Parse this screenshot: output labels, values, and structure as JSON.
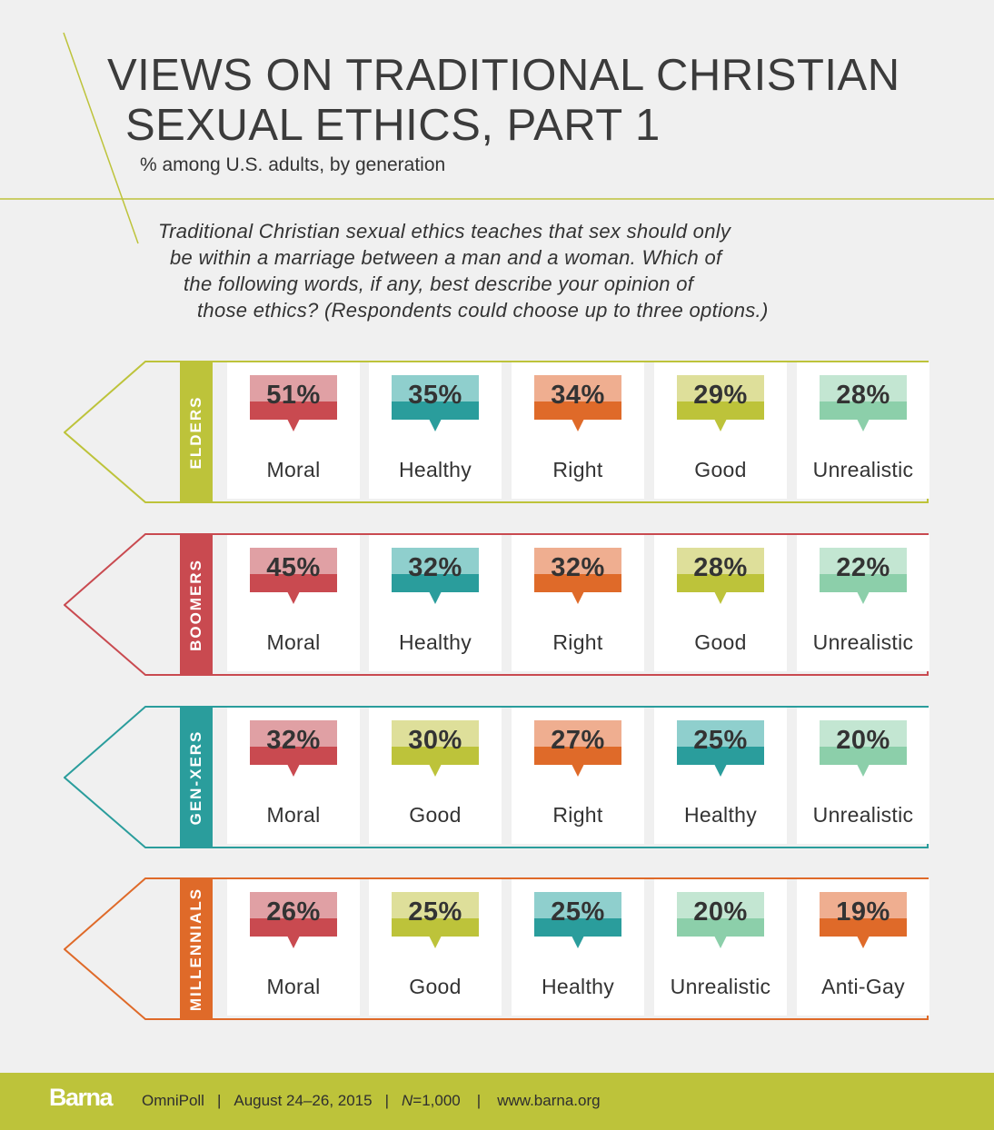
{
  "title_line1": "VIEWS ON TRADITIONAL CHRISTIAN",
  "title_line2": "SEXUAL ETHICS, PART 1",
  "subtitle": "% among U.S. adults, by generation",
  "question": [
    "Traditional Christian sexual ethics teaches that sex should only",
    "be within a marriage between a man and a woman. Which of",
    "the following words, if any, best describe your opinion of",
    "those ethics? (Respondents could choose up to three options.)"
  ],
  "colors": {
    "background": "#f0f0f0",
    "lime": "#bdc33a",
    "red": "#c94a50",
    "teal": "#2a9d9c",
    "orange": "#df6a29",
    "mint": "#8ccfaa"
  },
  "word_colors": {
    "Moral": {
      "dark": "#c94a50",
      "light": "#e0a0a4"
    },
    "Healthy": {
      "dark": "#2a9d9c",
      "light": "#8fcfcd"
    },
    "Right": {
      "dark": "#df6a29",
      "light": "#efae90"
    },
    "Good": {
      "dark": "#bdc33a",
      "light": "#dedf9a"
    },
    "Unrealistic": {
      "dark": "#8ccfaa",
      "light": "#c3e6d2"
    },
    "Anti-Gay": {
      "dark": "#df6a29",
      "light": "#efae90"
    }
  },
  "chart_data": {
    "type": "table",
    "unit": "%",
    "groups": [
      {
        "name": "ELDERS",
        "color": "#bdc33a",
        "items": [
          {
            "label": "Moral",
            "value": 51,
            "display": "51%"
          },
          {
            "label": "Healthy",
            "value": 35,
            "display": "35%"
          },
          {
            "label": "Right",
            "value": 34,
            "display": "34%"
          },
          {
            "label": "Good",
            "value": 29,
            "display": "29%"
          },
          {
            "label": "Unrealistic",
            "value": 28,
            "display": "28%"
          }
        ]
      },
      {
        "name": "BOOMERS",
        "color": "#c94a50",
        "items": [
          {
            "label": "Moral",
            "value": 45,
            "display": "45%"
          },
          {
            "label": "Healthy",
            "value": 32,
            "display": "32%"
          },
          {
            "label": "Right",
            "value": 32,
            "display": "32%"
          },
          {
            "label": "Good",
            "value": 28,
            "display": "28%"
          },
          {
            "label": "Unrealistic",
            "value": 22,
            "display": "22%"
          }
        ]
      },
      {
        "name": "GEN-XERS",
        "color": "#2a9d9c",
        "items": [
          {
            "label": "Moral",
            "value": 32,
            "display": "32%"
          },
          {
            "label": "Good",
            "value": 30,
            "display": "30%"
          },
          {
            "label": "Right",
            "value": 27,
            "display": "27%"
          },
          {
            "label": "Healthy",
            "value": 25,
            "display": "25%"
          },
          {
            "label": "Unrealistic",
            "value": 20,
            "display": "20%"
          }
        ]
      },
      {
        "name": "MILLENNIALS",
        "color": "#df6a29",
        "items": [
          {
            "label": "Moral",
            "value": 26,
            "display": "26%"
          },
          {
            "label": "Good",
            "value": 25,
            "display": "25%"
          },
          {
            "label": "Healthy",
            "value": 25,
            "display": "25%"
          },
          {
            "label": "Unrealistic",
            "value": 20,
            "display": "20%"
          },
          {
            "label": "Anti-Gay",
            "value": 19,
            "display": "19%"
          }
        ]
      }
    ]
  },
  "footer": {
    "brand": "Barna",
    "poll": "OmniPoll",
    "dates": "August 24–26, 2015",
    "n_label": "N",
    "n_value": "=1,000",
    "sep": "|",
    "url": "www.barna.org"
  }
}
